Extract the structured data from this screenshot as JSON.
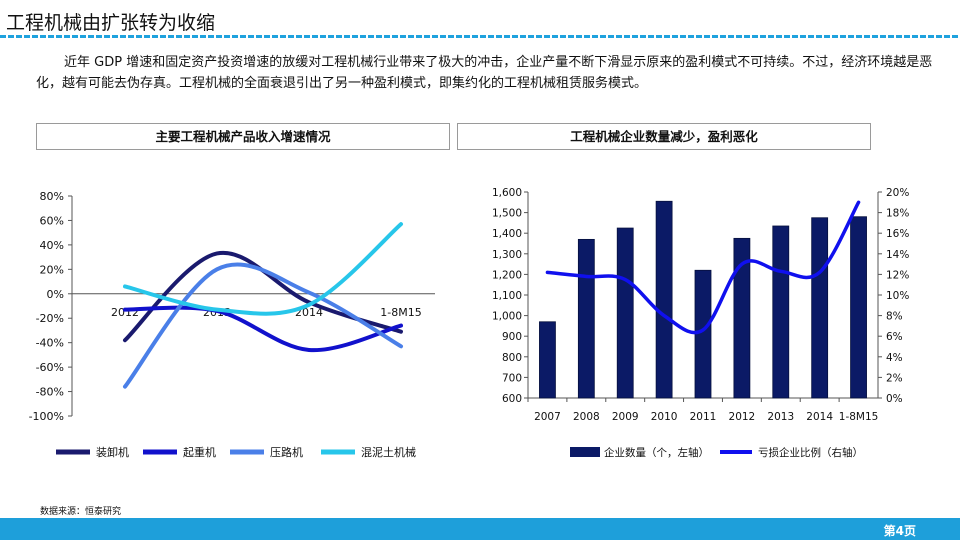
{
  "header": {
    "title": "工程机械由扩张转为收缩"
  },
  "intro": "近年 GDP 增速和固定资产投资增速的放缓对工程机械行业带来了极大的冲击，企业产量不断下滑显示原来的盈利模式不可持续。不过，经济环境越是恶化，越有可能去伪存真。工程机械的全面衰退引出了另一种盈利模式，即集约化的工程机械租赁服务模式。",
  "left_panel": {
    "heading": "主要工程机械产品收入增速情况"
  },
  "right_panel": {
    "heading": "工程机械企业数量减少，盈利恶化"
  },
  "source": "数据来源：恒泰研究",
  "page": "第4页",
  "chart_data": [
    {
      "type": "line",
      "categories": [
        "2012",
        "2013",
        "2014",
        "1-8M15"
      ],
      "y_ticks": [
        "80%",
        "60%",
        "40%",
        "20%",
        "0%",
        "-20%",
        "-40%",
        "-60%",
        "-80%",
        "-100%"
      ],
      "ylim": [
        -100,
        80
      ],
      "series": [
        {
          "name": "装卸机",
          "color": "#1a1a6e",
          "values": [
            -38,
            33,
            -7,
            -31
          ]
        },
        {
          "name": "起重机",
          "color": "#1111cc",
          "values": [
            -13,
            -14,
            -46,
            -26
          ]
        },
        {
          "name": "压路机",
          "color": "#4a7fe8",
          "values": [
            -76,
            20,
            1,
            -43
          ]
        },
        {
          "name": "混泥土机械",
          "color": "#27c6ea",
          "values": [
            6,
            -13,
            -9,
            57
          ]
        }
      ],
      "legend": "bottom"
    },
    {
      "type": "bar",
      "categories": [
        "2007",
        "2008",
        "2009",
        "2010",
        "2011",
        "2012",
        "2013",
        "2014",
        "1-8M15"
      ],
      "left_ticks": [
        "1,600",
        "1,500",
        "1,400",
        "1,300",
        "1,200",
        "1,100",
        "1,000",
        "900",
        "800",
        "700",
        "600"
      ],
      "right_ticks": [
        "20%",
        "18%",
        "16%",
        "14%",
        "12%",
        "10%",
        "8%",
        "6%",
        "4%",
        "2%",
        "0%"
      ],
      "ylim_left": [
        600,
        1600
      ],
      "ylim_right": [
        0,
        20
      ],
      "series": [
        {
          "name": "企业数量（个，左轴）",
          "color": "#0b1a66",
          "type": "bar",
          "values": [
            970,
            1370,
            1425,
            1555,
            1220,
            1375,
            1435,
            1475,
            1480
          ]
        },
        {
          "name": "亏损企业比例（右轴）",
          "color": "#1010ee",
          "type": "line",
          "values": [
            12.2,
            11.8,
            11.5,
            8.0,
            6.6,
            13.0,
            12.3,
            12.2,
            19.0
          ]
        }
      ],
      "legend": "bottom"
    }
  ]
}
